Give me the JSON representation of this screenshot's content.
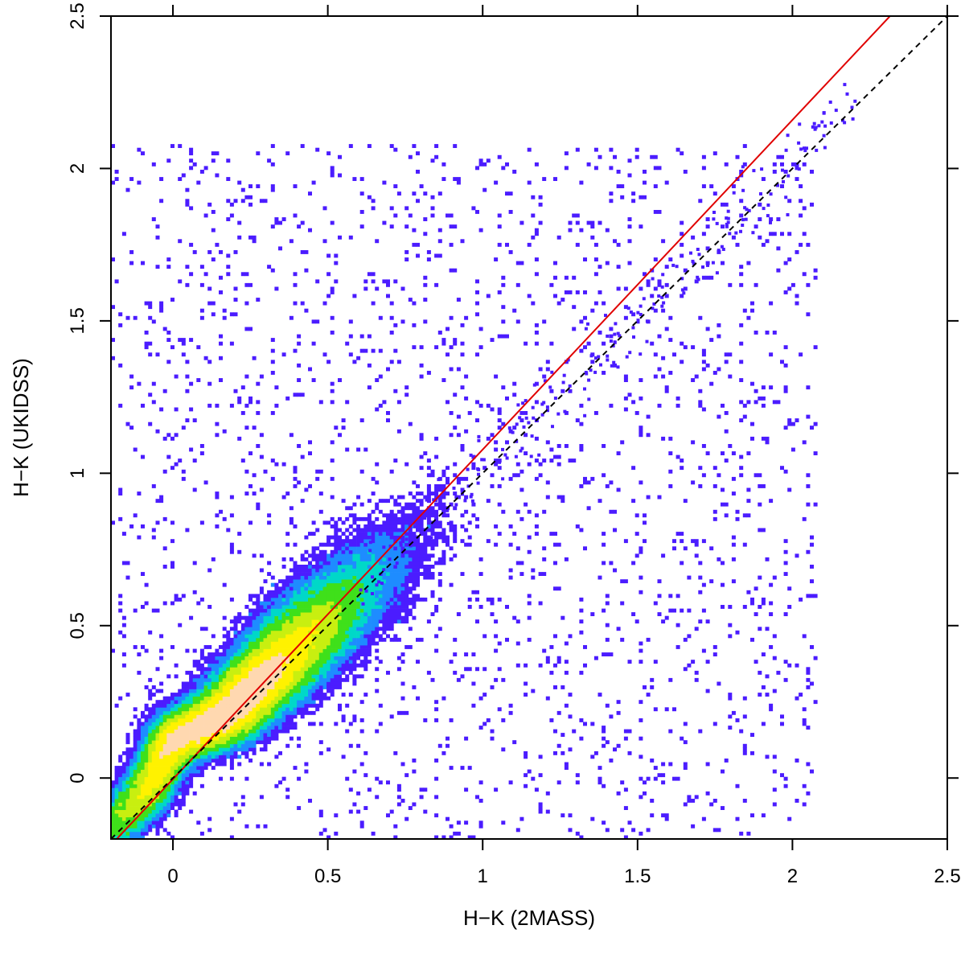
{
  "chart_data": {
    "type": "heatmap",
    "xlabel": "H−K (2MASS)",
    "ylabel": "H−K (UKIDSS)",
    "xlim": [
      -0.2,
      2.5
    ],
    "ylim": [
      -0.2,
      2.5
    ],
    "x_ticks": [
      0,
      0.5,
      1,
      1.5,
      2,
      2.5
    ],
    "x_tick_labels": [
      "0",
      "0.5",
      "1",
      "1.5",
      "2",
      "2.5"
    ],
    "y_ticks": [
      0,
      0.5,
      1,
      1.5,
      2,
      2.5
    ],
    "y_tick_labels": [
      "0",
      "0.5",
      "1",
      "1.5",
      "2",
      "2.5"
    ],
    "grid": false,
    "colors": [
      "#4b1cff",
      "#1e8cff",
      "#00d8c8",
      "#3fe01a",
      "#c8ef10",
      "#fff200",
      "#ffd8b0"
    ],
    "density_ridge": {
      "x": [
        -0.15,
        0.0,
        0.15,
        0.3,
        0.45,
        0.6,
        0.75,
        0.9,
        1.05,
        1.2,
        1.35,
        1.5,
        1.65,
        1.8,
        2.0,
        2.2
      ],
      "y": [
        0.14,
        0.17,
        0.26,
        0.37,
        0.5,
        0.64,
        0.78,
        0.93,
        1.07,
        1.22,
        1.37,
        1.52,
        1.67,
        1.82,
        2.03,
        2.25
      ]
    },
    "lines": [
      {
        "style": "solid",
        "color": "#e00000",
        "x": [
          -0.2,
          2.5
        ],
        "y": [
          -0.22,
          2.7
        ]
      },
      {
        "style": "dashed",
        "color": "#000000",
        "x": [
          -0.2,
          2.5
        ],
        "y": [
          -0.2,
          2.5
        ]
      }
    ]
  }
}
